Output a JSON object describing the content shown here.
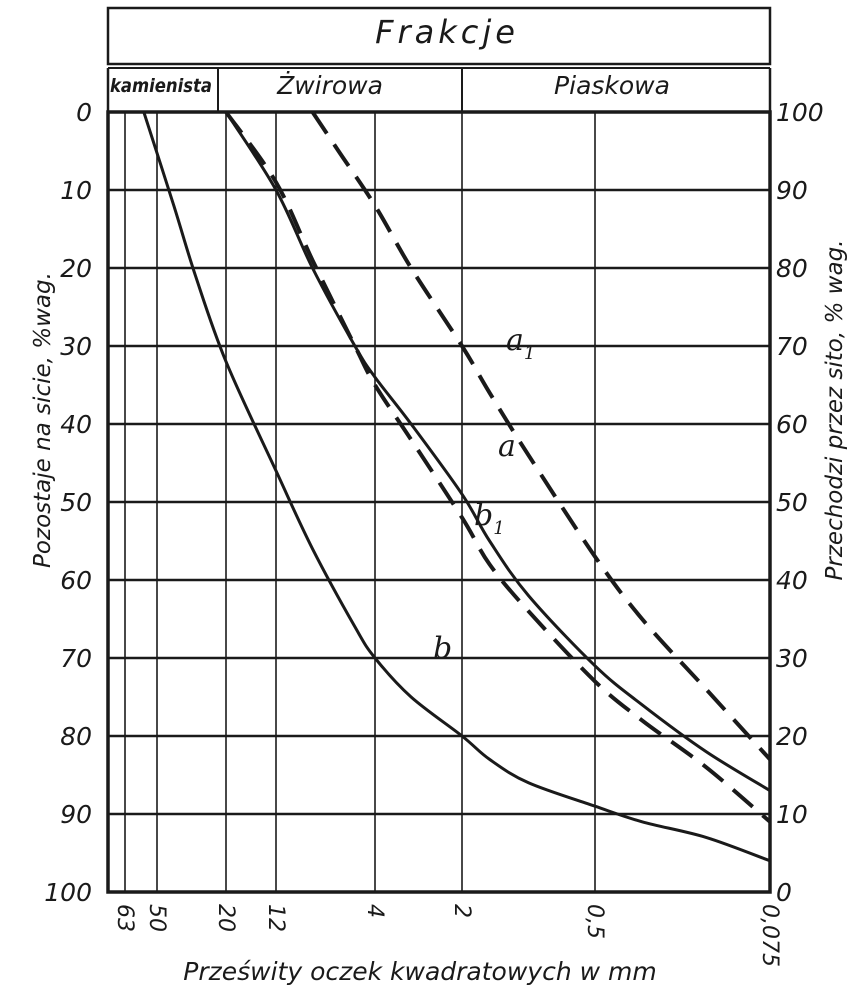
{
  "header": {
    "title": "Frakcje",
    "fractions": [
      "kamienista",
      "Żwirowa",
      "Piaskowa"
    ]
  },
  "chart_data": {
    "type": "line",
    "xlabel": "Prześwity oczek kwadratowych w mm",
    "ylabel_left": "Pozostaje na sicie, %wag.",
    "ylabel_right": "Przechodzi przez sito, % wag.",
    "x_tick_labels": [
      "63",
      "50",
      "20",
      "12",
      "4",
      "2",
      "0,5",
      "0,075"
    ],
    "x_scale": "log",
    "x_range": [
      63,
      0.075
    ],
    "y_left_ticks": [
      "0",
      "10",
      "20",
      "30",
      "40",
      "50",
      "60",
      "70",
      "80",
      "90",
      "100"
    ],
    "y_right_ticks": [
      "100",
      "90",
      "80",
      "70",
      "60",
      "50",
      "40",
      "30",
      "20",
      "10",
      "0"
    ],
    "ylim_left": [
      0,
      100
    ],
    "grid": true,
    "series": [
      {
        "name": "a",
        "style": "solid",
        "x": [
          20,
          12,
          8,
          5,
          4,
          3,
          2,
          1.5,
          1,
          0.5,
          0.3,
          0.15,
          0.075
        ],
        "y": [
          0,
          10,
          20,
          30,
          34,
          40,
          49,
          55,
          62,
          71,
          76,
          82,
          87
        ]
      },
      {
        "name": "a1",
        "style": "dashed",
        "x": [
          8,
          6,
          4,
          3,
          2,
          1.5,
          1,
          0.5,
          0.3,
          0.15,
          0.075
        ],
        "y": [
          0,
          5,
          12,
          20,
          30,
          36,
          44,
          57,
          65,
          74,
          83
        ]
      },
      {
        "name": "b",
        "style": "solid",
        "x": [
          55,
          40,
          30,
          20,
          12,
          8,
          5,
          4,
          3,
          2,
          1.5,
          1,
          0.5,
          0.3,
          0.15,
          0.075
        ],
        "y": [
          0,
          12,
          21,
          32,
          46,
          56,
          66,
          70,
          75,
          80,
          83,
          86,
          89,
          91,
          93,
          96
        ]
      },
      {
        "name": "b1",
        "style": "dashed",
        "x": [
          20,
          12,
          8,
          5,
          4,
          3,
          2,
          1.5,
          1,
          0.5,
          0.3,
          0.15,
          0.075
        ],
        "y": [
          0,
          9,
          19,
          30,
          35,
          42,
          52,
          58,
          64,
          73,
          78,
          84,
          91
        ]
      }
    ],
    "curve_labels": [
      "a1",
      "a",
      "b1",
      "b"
    ]
  }
}
